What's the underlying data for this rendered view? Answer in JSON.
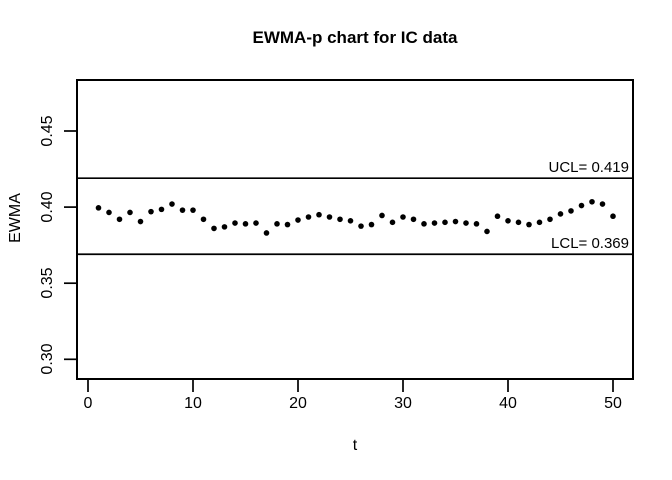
{
  "chart_data": {
    "type": "scatter",
    "title": "EWMA-p chart for IC data",
    "xlabel": "t",
    "ylabel": "EWMA",
    "x_ticks": [
      0,
      10,
      20,
      30,
      40,
      50
    ],
    "y_ticks": [
      0.3,
      0.35,
      0.4,
      0.45
    ],
    "y_tick_labels": [
      "0.30",
      "0.35",
      "0.40",
      "0.45"
    ],
    "xlim": [
      -1,
      52
    ],
    "ylim": [
      0.287,
      0.483
    ],
    "grid": false,
    "legend": "none",
    "point_color": "#000000",
    "line_color": "#000000",
    "background_color": "#ffffff",
    "ucl": {
      "value": 0.419,
      "label": "UCL= 0.419"
    },
    "lcl": {
      "value": 0.369,
      "label": "LCL= 0.369"
    },
    "series": [
      {
        "name": "EWMA",
        "x": [
          1,
          2,
          3,
          4,
          5,
          6,
          7,
          8,
          9,
          10,
          11,
          12,
          13,
          14,
          15,
          16,
          17,
          18,
          19,
          20,
          21,
          22,
          23,
          24,
          25,
          26,
          27,
          28,
          29,
          30,
          31,
          32,
          33,
          34,
          35,
          36,
          37,
          38,
          39,
          40,
          41,
          42,
          43,
          44,
          45,
          46,
          47,
          48,
          49,
          50
        ],
        "y": [
          0.3995,
          0.3965,
          0.392,
          0.3965,
          0.3905,
          0.397,
          0.3985,
          0.402,
          0.398,
          0.398,
          0.392,
          0.386,
          0.387,
          0.3895,
          0.389,
          0.3895,
          0.383,
          0.389,
          0.3885,
          0.3915,
          0.3935,
          0.395,
          0.3935,
          0.392,
          0.391,
          0.3875,
          0.3885,
          0.3945,
          0.39,
          0.3935,
          0.392,
          0.389,
          0.3895,
          0.39,
          0.3905,
          0.3895,
          0.389,
          0.384,
          0.394,
          0.391,
          0.39,
          0.3885,
          0.39,
          0.392,
          0.3955,
          0.3975,
          0.401,
          0.4035,
          0.402,
          0.394
        ]
      }
    ]
  }
}
